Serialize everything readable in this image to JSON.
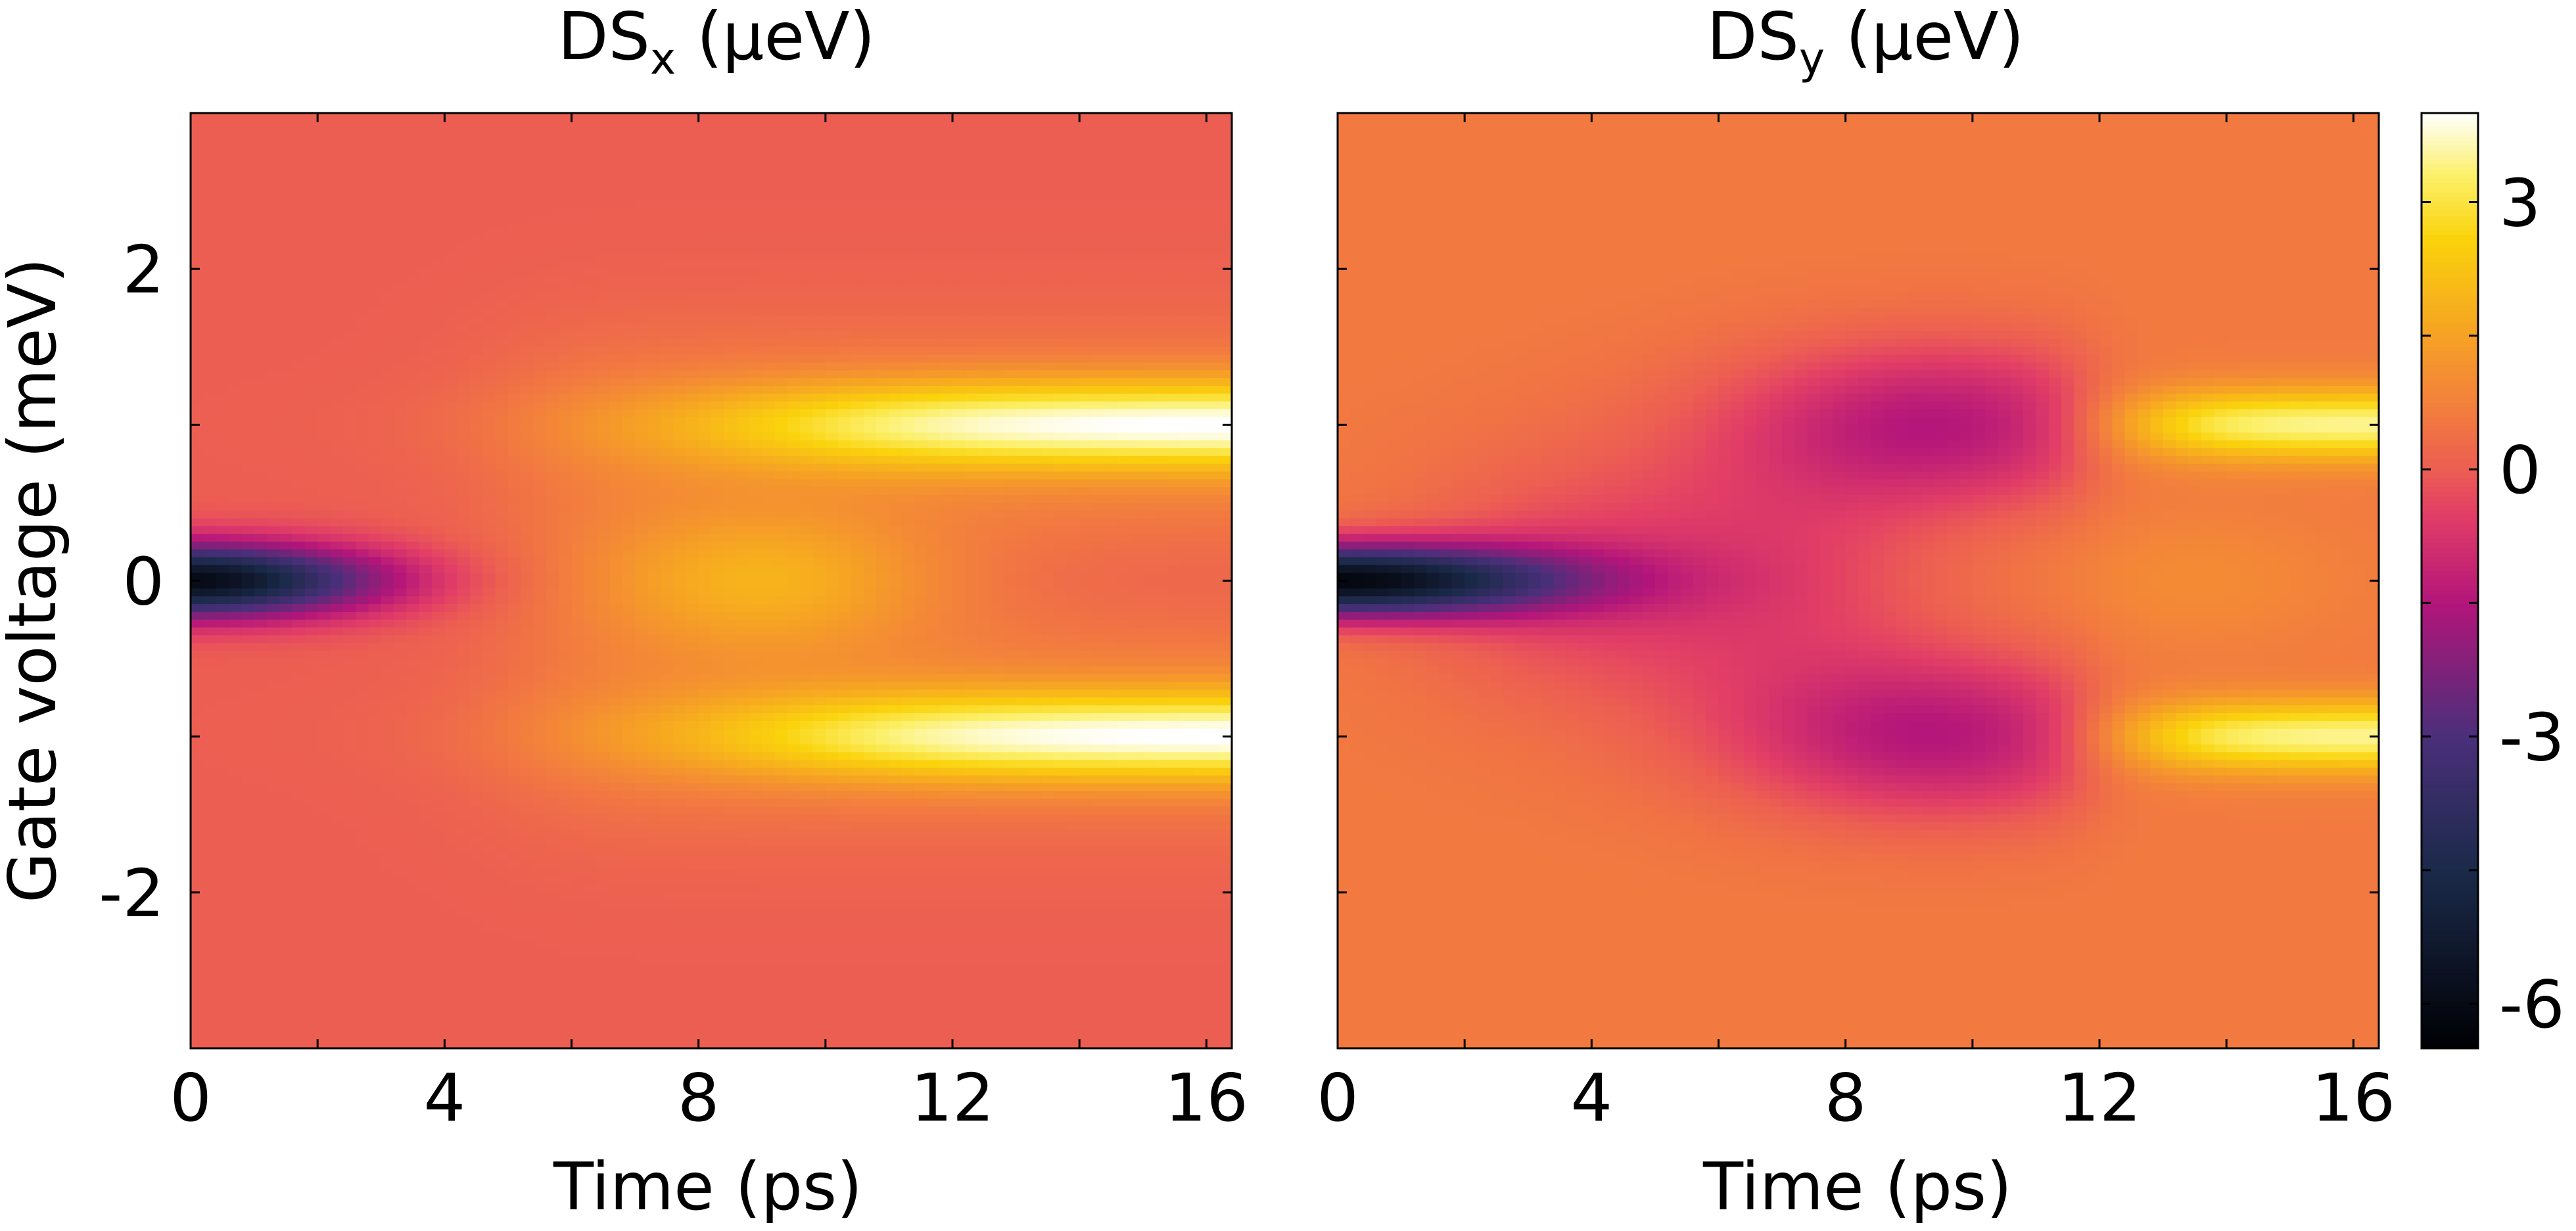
{
  "chart_data": [
    {
      "type": "heatmap",
      "title_main": "DS",
      "title_sub": "x",
      "title_unit": " (μeV)",
      "xlabel": "Time (ps)",
      "ylabel": "Gate voltage (meV)",
      "xlim": [
        0,
        16.4
      ],
      "ylim": [
        -3,
        3
      ],
      "xticks": [
        0,
        4,
        8,
        12,
        16
      ],
      "yticks": [
        -2,
        0,
        2
      ],
      "xtick_labels": [
        "0",
        "4",
        "8",
        "12",
        "16"
      ],
      "ytick_labels": [
        "-2",
        "0",
        "2"
      ],
      "background_value": 0.0,
      "features": [
        {
          "name": "dip",
          "x": 0,
          "y": 0,
          "value": -6.0
        },
        {
          "name": "upper-peak",
          "x": 15.5,
          "y": 1.0,
          "value": 4.0
        },
        {
          "name": "lower-peak",
          "x": 15.5,
          "y": -1.0,
          "value": 4.0
        },
        {
          "name": "center-hump",
          "x": 9,
          "y": 0,
          "value": 1.5
        }
      ]
    },
    {
      "type": "heatmap",
      "title_main": "DS",
      "title_sub": "y",
      "title_unit": " (μeV)",
      "xlabel": "Time (ps)",
      "xlim": [
        0,
        16.4
      ],
      "ylim": [
        -3,
        3
      ],
      "xticks": [
        0,
        4,
        8,
        12,
        16
      ],
      "yticks": [
        -2,
        0,
        2
      ],
      "xtick_labels": [
        "0",
        "4",
        "8",
        "12",
        "16"
      ],
      "background_value": 0.6,
      "features": [
        {
          "name": "dip",
          "x": 0,
          "y": 0,
          "value": -6.0
        },
        {
          "name": "upper-trough",
          "x": 10,
          "y": 1.0,
          "value": -1.5
        },
        {
          "name": "lower-trough",
          "x": 10,
          "y": -1.0,
          "value": -1.5
        },
        {
          "name": "upper-peak",
          "x": 16,
          "y": 1.0,
          "value": 3.5
        },
        {
          "name": "lower-peak",
          "x": 16,
          "y": -1.0,
          "value": 3.5
        }
      ]
    }
  ],
  "colorbar": {
    "range": [
      -6.5,
      4
    ],
    "ticks": [
      3,
      0,
      -3,
      -6
    ],
    "tick_labels": [
      "3",
      "0",
      "-3",
      "-6"
    ],
    "colormap": "inferno-like",
    "stops": [
      {
        "v": -6.5,
        "c": "#000004"
      },
      {
        "v": -4.5,
        "c": "#1b2a4a"
      },
      {
        "v": -3.0,
        "c": "#4a2f7a"
      },
      {
        "v": -1.5,
        "c": "#b3157a"
      },
      {
        "v": -0.5,
        "c": "#e23e66"
      },
      {
        "v": 0.0,
        "c": "#ec5e52"
      },
      {
        "v": 0.6,
        "c": "#f27a40"
      },
      {
        "v": 1.5,
        "c": "#f6a224"
      },
      {
        "v": 2.6,
        "c": "#fad30c"
      },
      {
        "v": 3.3,
        "c": "#fcf06a"
      },
      {
        "v": 4.0,
        "c": "#ffffff"
      }
    ]
  }
}
